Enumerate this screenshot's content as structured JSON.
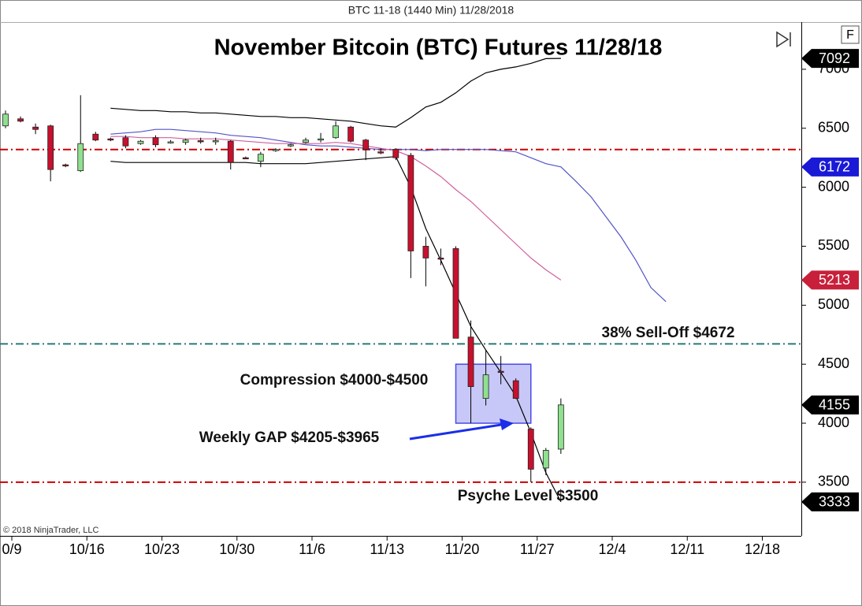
{
  "header": {
    "title": "BTC 11-18 (1440 Min)  11/28/2018"
  },
  "ui": {
    "button": "F",
    "copyright": "© 2018 NinjaTrader, LLC"
  },
  "chart_data": {
    "type": "candlestick",
    "title": "November Bitcoin (BTC) Futures 11/28/18",
    "categories": [
      "0/9",
      null,
      null,
      null,
      null,
      "10/16",
      null,
      null,
      null,
      null,
      "10/23",
      null,
      null,
      null,
      null,
      "10/30",
      null,
      null,
      null,
      null,
      "11/6",
      null,
      null,
      null,
      null,
      "11/13",
      null,
      null,
      null,
      null,
      "11/20",
      null,
      null,
      null,
      null,
      "11/27",
      null,
      null,
      null,
      null,
      "12/4",
      null,
      null,
      null,
      null,
      "12/11",
      null,
      null,
      null,
      null,
      "12/18",
      null,
      null
    ],
    "open": [
      6520,
      6580,
      6510,
      6520,
      6190,
      6140,
      6450,
      6410,
      6420,
      6370,
      6420,
      6380,
      6380,
      6395,
      6385,
      6390,
      6250,
      6220,
      6310,
      6350,
      6380,
      6400,
      6420,
      6510,
      6400,
      6300,
      6320,
      6270,
      5500,
      5400,
      5480,
      4730,
      4210,
      4440,
      4360,
      3950,
      3620,
      3780,
      null,
      null,
      null,
      null,
      null,
      null,
      null,
      null,
      null,
      null,
      null,
      null,
      null,
      null,
      null
    ],
    "high": [
      6650,
      6600,
      6540,
      6530,
      6200,
      6780,
      6470,
      6420,
      6440,
      6400,
      6440,
      6400,
      6410,
      6420,
      6420,
      6400,
      6260,
      6300,
      6330,
      6370,
      6420,
      6460,
      6560,
      6520,
      6410,
      6330,
      6330,
      6290,
      5580,
      5480,
      5500,
      4870,
      4620,
      4570,
      4380,
      3965,
      3790,
      4210,
      null,
      null,
      null,
      null,
      null,
      null,
      null,
      null,
      null,
      null,
      null,
      null,
      null,
      null,
      null
    ],
    "low": [
      6500,
      6550,
      6450,
      6050,
      6170,
      6130,
      6390,
      6390,
      6330,
      6360,
      6340,
      6370,
      6360,
      6370,
      6360,
      6150,
      6240,
      6170,
      6300,
      6340,
      6370,
      6380,
      6410,
      6380,
      6230,
      6280,
      6230,
      5230,
      5160,
      5340,
      4720,
      4000,
      4150,
      4330,
      4205,
      3500,
      3560,
      3740,
      null,
      null,
      null,
      null,
      null,
      null,
      null,
      null,
      null,
      null,
      null,
      null,
      null,
      null,
      null
    ],
    "close": [
      6620,
      6560,
      6490,
      6150,
      6180,
      6370,
      6400,
      6400,
      6350,
      6390,
      6360,
      6385,
      6400,
      6385,
      6395,
      6210,
      6245,
      6280,
      6320,
      6360,
      6400,
      6410,
      6520,
      6390,
      6320,
      6290,
      6250,
      5460,
      5400,
      5390,
      4720,
      4310,
      4410,
      4430,
      4210,
      3610,
      3770,
      4155,
      null,
      null,
      null,
      null,
      null,
      null,
      null,
      null,
      null,
      null,
      null,
      null,
      null,
      null,
      null
    ],
    "up_color": "#8fe08f",
    "down_color": "#c8102e",
    "lines": [
      {
        "color": "#000000",
        "values": [
          null,
          null,
          null,
          null,
          null,
          null,
          null,
          6670,
          6660,
          6650,
          6650,
          6640,
          6640,
          6630,
          6630,
          6620,
          6610,
          6600,
          6600,
          6590,
          6590,
          6580,
          6570,
          6560,
          6540,
          6520,
          6510,
          6590,
          6680,
          6720,
          6800,
          6900,
          6970,
          7000,
          7020,
          7050,
          7090,
          7092,
          null,
          null,
          null,
          null,
          null,
          null,
          null,
          null,
          null,
          null,
          null,
          null,
          null,
          null,
          null
        ]
      },
      {
        "color": "#000000",
        "values": [
          null,
          null,
          null,
          null,
          null,
          null,
          null,
          6220,
          6210,
          6210,
          6210,
          6210,
          6210,
          6210,
          6210,
          6210,
          6210,
          6200,
          6200,
          6200,
          6200,
          6210,
          6220,
          6230,
          6240,
          6250,
          6260,
          6000,
          5650,
          5380,
          5100,
          4820,
          4620,
          4430,
          4230,
          3920,
          3580,
          3333,
          null,
          null,
          null,
          null,
          null,
          null,
          null,
          null,
          null,
          null,
          null,
          null,
          null,
          null,
          null
        ]
      },
      {
        "color": "#5454c8",
        "values": [
          null,
          null,
          null,
          null,
          null,
          null,
          null,
          6450,
          6460,
          6470,
          6490,
          6490,
          6480,
          6470,
          6460,
          6440,
          6430,
          6420,
          6400,
          6380,
          6360,
          6350,
          6350,
          6340,
          6330,
          6320,
          6320,
          6320,
          6310,
          6320,
          6320,
          6320,
          6320,
          6310,
          6300,
          6250,
          6200,
          6172,
          6050,
          5920,
          5750,
          5580,
          5380,
          5150,
          5030,
          null,
          null,
          null,
          null,
          null,
          null,
          null,
          null
        ]
      },
      {
        "color": "#d0609a",
        "values": [
          null,
          null,
          null,
          null,
          null,
          null,
          null,
          6430,
          6430,
          6420,
          6420,
          6420,
          6410,
          6410,
          6410,
          6400,
          6390,
          6380,
          6370,
          6370,
          6370,
          6370,
          6380,
          6370,
          6350,
          6330,
          6310,
          6260,
          6180,
          6090,
          5980,
          5880,
          5760,
          5640,
          5520,
          5400,
          5300,
          5213,
          null,
          null,
          null,
          null,
          null,
          null,
          null,
          null,
          null,
          null,
          null,
          null,
          null,
          null,
          null
        ]
      }
    ],
    "levels": [
      {
        "value": 6320,
        "color": "#cc0000"
      },
      {
        "value": 4672,
        "color": "#2a7878"
      },
      {
        "value": 3500,
        "color": "#cc0000"
      }
    ],
    "zone": {
      "low": 4000,
      "high": 4500,
      "color": "#4a4ae8"
    },
    "annotations": [
      {
        "text": "38% Sell-Off $4672"
      },
      {
        "text": "Compression $4000-$4500"
      },
      {
        "text": "Weekly GAP $4205-$3965"
      },
      {
        "text": "Psyche Level $3500"
      }
    ],
    "price_tags": [
      {
        "value": 7092,
        "color": "#000000"
      },
      {
        "value": 6172,
        "color": "#1a1ad6"
      },
      {
        "value": 5213,
        "color": "#c8203a"
      },
      {
        "value": 4155,
        "color": "#000000"
      },
      {
        "value": 3333,
        "color": "#000000"
      }
    ],
    "ylim": [
      3045,
      7400
    ],
    "yticks": [
      3500,
      4000,
      4500,
      5000,
      5500,
      6000,
      6500,
      7000
    ]
  }
}
